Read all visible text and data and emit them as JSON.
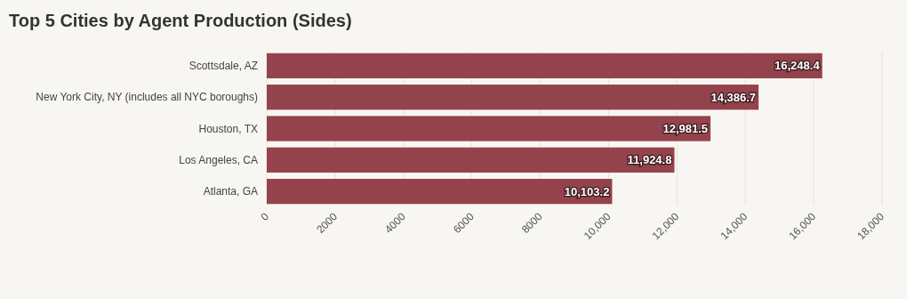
{
  "chart_data": {
    "type": "bar",
    "orientation": "horizontal",
    "title": "Top 5 Cities by Agent Production (Sides)",
    "categories": [
      "Scottsdale, AZ",
      "New York City, NY (includes all NYC boroughs)",
      "Houston, TX",
      "Los Angeles, CA",
      "Atlanta, GA"
    ],
    "values": [
      16248.4,
      14386.7,
      12981.5,
      11924.8,
      10103.2
    ],
    "value_labels": [
      "16,248.4",
      "14,386.7",
      "12,981.5",
      "11,924.8",
      "10,103.2"
    ],
    "color": "#94424c",
    "xlim": [
      0,
      18000
    ],
    "xticks": [
      0,
      2000,
      4000,
      6000,
      8000,
      {
        "value": 10000,
        "label": "10,000"
      },
      {
        "value": 12000,
        "label": "12,000"
      },
      {
        "value": 14000,
        "label": "14,000"
      },
      {
        "value": 16000,
        "label": "16,000"
      },
      {
        "value": 18000,
        "label": "18,000"
      }
    ],
    "grid": "x"
  }
}
